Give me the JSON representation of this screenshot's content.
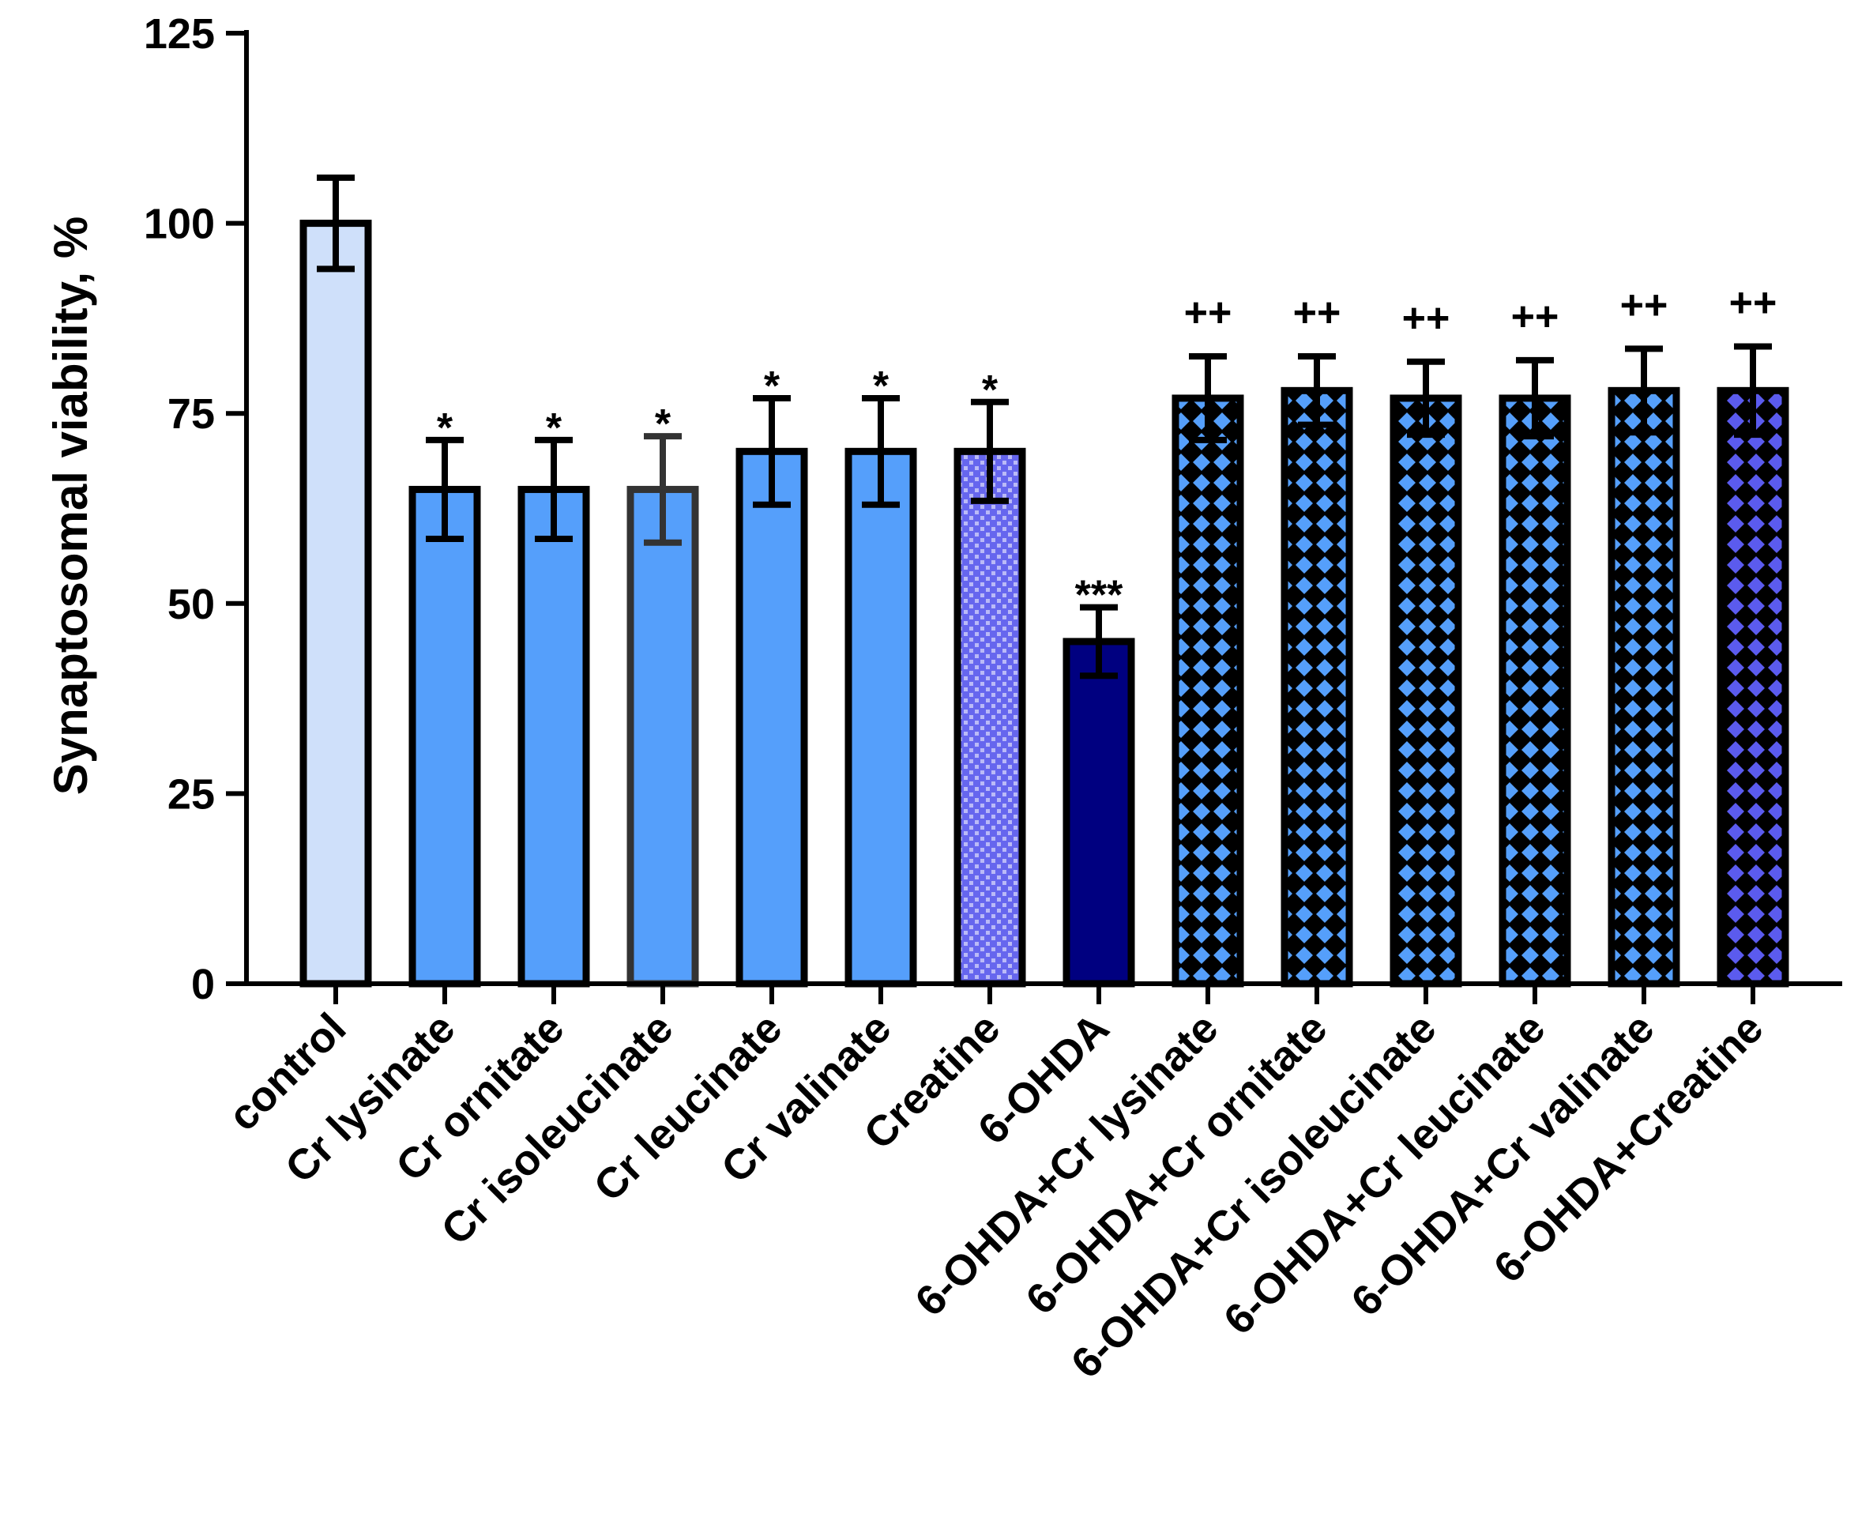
{
  "chart_data": {
    "type": "bar",
    "title": "",
    "xlabel": "",
    "ylabel": "Synaptosomal viability, %",
    "ylim": [
      0,
      125
    ],
    "yticks": [
      0,
      25,
      50,
      75,
      100,
      125
    ],
    "grid": false,
    "categories": [
      "control",
      "Cr lysinate",
      "Cr ornitate",
      "Cr isoleucinate",
      "Cr leucinate",
      "Cr valinate",
      "Creatine",
      "6-OHDA",
      "6-OHDA+Cr lysinate",
      "6-OHDA+Cr ornitate",
      "6-OHDA+Cr isoleucinate",
      "6-OHDA+Cr leucinate",
      "6-OHDA+Cr valinate",
      "6-OHDA+Creatine"
    ],
    "values": [
      100,
      65,
      65,
      65,
      70,
      70,
      70,
      45,
      77,
      78,
      77,
      77,
      78,
      78
    ],
    "errors": [
      6,
      6.5,
      6.5,
      7,
      7,
      7,
      6.5,
      4.5,
      5.5,
      4.5,
      4.8,
      5,
      5.5,
      5.8
    ],
    "annotations": [
      "",
      "*",
      "*",
      "*",
      "*",
      "*",
      "*",
      "***",
      "++",
      "++",
      "++",
      "++",
      "++",
      "++"
    ],
    "colors": [
      "#cfe0fa",
      "#559ffb",
      "#559ffb",
      "#559ffb",
      "#559ffb",
      "#559ffb",
      "#6666ee",
      "#000080",
      "#559ffb",
      "#559ffb",
      "#559ffb",
      "#559ffb",
      "#559ffb",
      "#5b5bee"
    ],
    "patterns": [
      "solid",
      "solid",
      "solid",
      "solid",
      "solid",
      "solid",
      "dots",
      "solid",
      "crosshatch",
      "crosshatch",
      "crosshatch",
      "crosshatch",
      "crosshatch",
      "crosshatch"
    ],
    "edge_colors": [
      "#000000",
      "#000000",
      "#000000",
      "#333333",
      "#000000",
      "#000000",
      "#000000",
      "#000000",
      "#000000",
      "#000000",
      "#000000",
      "#000000",
      "#000000",
      "#000000"
    ]
  }
}
